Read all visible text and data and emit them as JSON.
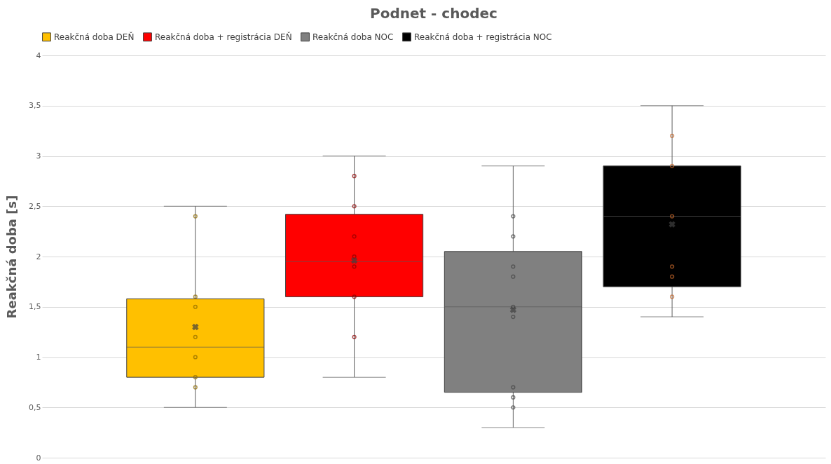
{
  "chart_data": {
    "type": "box",
    "title": "Podnet - chodec",
    "ylabel": "Reakčná doba [s]",
    "categories": [
      null
    ],
    "ylim": [
      0,
      4
    ],
    "yticks": [
      0,
      {
        "value": 0.5,
        "label": "0,5"
      },
      1,
      {
        "value": 1.5,
        "label": "1,5"
      },
      2,
      {
        "value": 2.5,
        "label": "2,5"
      },
      3,
      {
        "value": 3.5,
        "label": "3,5"
      },
      4
    ],
    "grid": "y",
    "legend": "top",
    "tick_labels": "y",
    "marker": "circle",
    "series": [
      {
        "name": "Reakčná doba DEŇ",
        "color": "#ffc000",
        "boxes": [
          {
            "low": 0.5,
            "q1": 0.8,
            "median": 1.1,
            "q3": 1.58,
            "high": 2.5,
            "mean": 1.3,
            "outliers": [
              2.4,
              1.6,
              1.5,
              1.2,
              1.0,
              0.8,
              0.7
            ]
          }
        ]
      },
      {
        "name": "Reakčná doba + registrácia DEŇ",
        "color": "#ff0000",
        "boxes": [
          {
            "low": 0.8,
            "q1": 1.6,
            "median": 1.95,
            "q3": 2.42,
            "high": 3.0,
            "mean": 1.96,
            "outliers": [
              2.8,
              2.5,
              2.2,
              2.0,
              1.9,
              1.6,
              1.2
            ]
          }
        ]
      },
      {
        "name": "Reakčná doba NOC",
        "color": "#808080",
        "boxes": [
          {
            "low": 0.3,
            "q1": 0.65,
            "median": 1.5,
            "q3": 2.05,
            "high": 2.9,
            "mean": 1.47,
            "outliers": [
              2.4,
              2.2,
              1.9,
              1.8,
              1.5,
              1.4,
              0.7,
              0.6,
              0.5
            ]
          }
        ]
      },
      {
        "name": "Reakčná doba + registrácia NOC",
        "color": "#000000",
        "boxes": [
          {
            "low": 1.4,
            "q1": 1.7,
            "median": 2.4,
            "q3": 2.9,
            "high": 3.5,
            "mean": 2.32,
            "outliers": [
              3.2,
              2.9,
              2.4,
              1.9,
              1.8,
              1.6
            ]
          }
        ]
      }
    ]
  }
}
